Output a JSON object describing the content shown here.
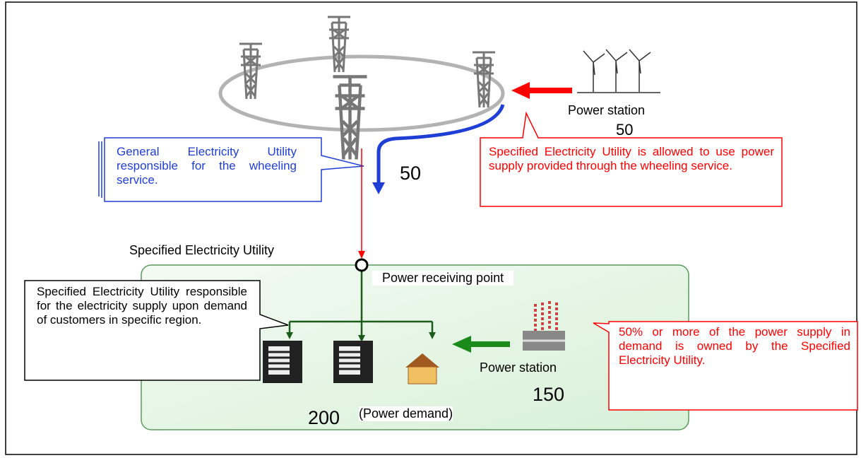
{
  "diagram": {
    "wind_station": {
      "label": "Power station",
      "value": 50
    },
    "wheeling_value": 50,
    "callouts": {
      "general_utility": "General Electricity Utility responsible for the wheeling service.",
      "wheeling_use": "Specified Electricity Utility is allowed to use power supply provided through the wheeling service.",
      "supply_responsibility": "Specified Electricity Utility responsible for the electricity supply upon demand of customers in specific region.",
      "ownership": "50% or more of the power supply in demand is owned by the Specified Electricity Utility."
    },
    "region_title": "Specified Electricity Utility",
    "receiving_point": "Power receiving point",
    "local_station": {
      "label": "Power station",
      "value": 150
    },
    "demand": {
      "value": 200,
      "label": "(Power demand)"
    }
  }
}
